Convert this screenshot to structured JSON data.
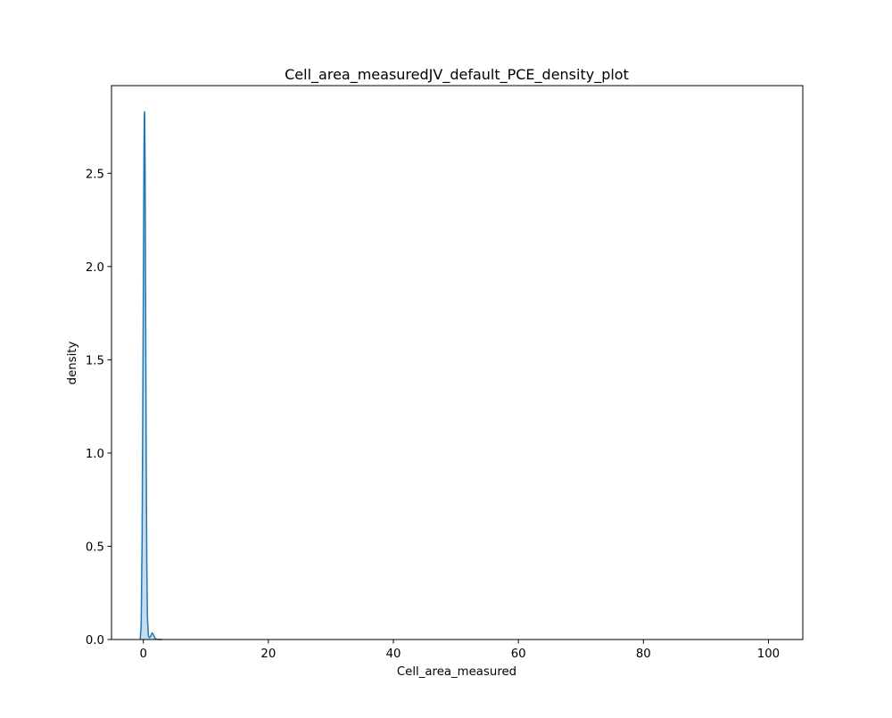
{
  "chart_data": {
    "type": "area",
    "title": "Cell_area_measuredJV_default_PCE_density_plot",
    "xlabel": "Cell_area_measured",
    "ylabel": "density",
    "xlim": [
      -5.1,
      105.5
    ],
    "ylim": [
      0,
      2.97
    ],
    "xticks": [
      0,
      20,
      40,
      60,
      80,
      100
    ],
    "xtick_labels": [
      "0",
      "20",
      "40",
      "60",
      "80",
      "100"
    ],
    "yticks": [
      0.0,
      0.5,
      1.0,
      1.5,
      2.0,
      2.5
    ],
    "ytick_labels": [
      "0.0",
      "0.5",
      "1.0",
      "1.5",
      "2.0",
      "2.5"
    ],
    "grid": false,
    "legend": "none",
    "series": [
      {
        "color": "#1f77b4",
        "fill_color": "#1f77b4",
        "fill_opacity": 0.25,
        "x": [
          -0.5,
          -0.35,
          -0.2,
          -0.05,
          0.05,
          0.1,
          0.15,
          0.2,
          0.28,
          0.35,
          0.45,
          0.55,
          0.65,
          0.8,
          0.95,
          1.1,
          1.25,
          1.4,
          1.55,
          1.7,
          1.85,
          2.0,
          2.2,
          2.4,
          2.6,
          2.8,
          3.0
        ],
        "y": [
          0.0,
          0.08,
          0.55,
          1.55,
          2.3,
          2.62,
          2.8,
          2.83,
          2.5,
          1.85,
          1.0,
          0.4,
          0.12,
          0.02,
          0.01,
          0.015,
          0.025,
          0.035,
          0.03,
          0.018,
          0.008,
          0.003,
          0.001,
          0.0,
          0.0,
          0.0,
          0.0
        ]
      }
    ]
  }
}
